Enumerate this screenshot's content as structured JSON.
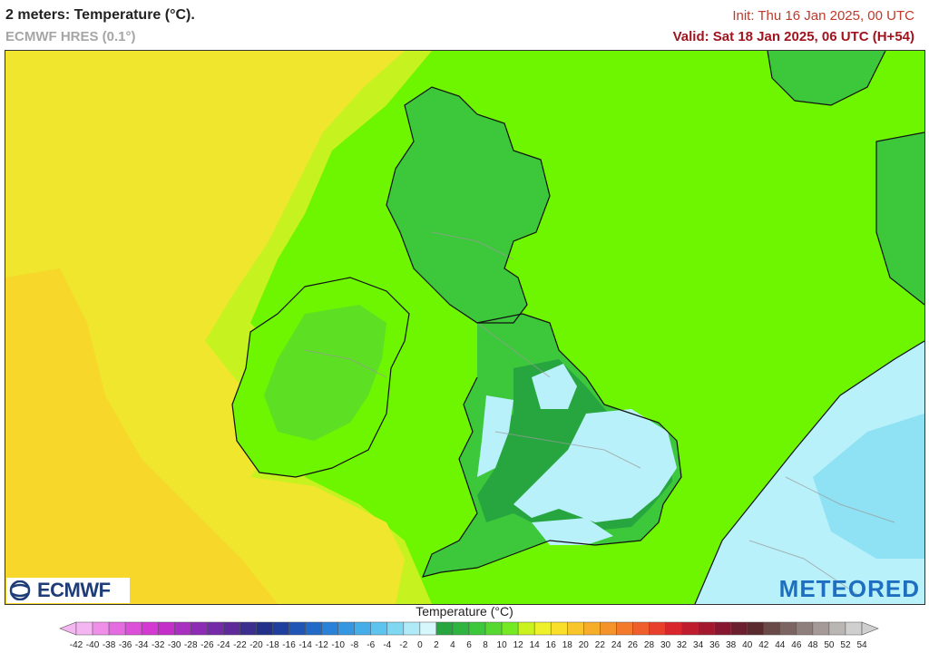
{
  "header": {
    "title": "2 meters: Temperature (°C).",
    "model": "ECMWF HRES (0.1°)",
    "init": "Init: Thu 16 Jan 2025, 00 UTC",
    "valid": "Valid: Sat 18 Jan 2025, 06 UTC (H+54)"
  },
  "logos": {
    "left": "ECMWF",
    "right": "METEORED"
  },
  "legend": {
    "title": "Temperature (°C)",
    "ticks": [
      "-42",
      "-40",
      "-38",
      "-36",
      "-34",
      "-32",
      "-30",
      "-28",
      "-26",
      "-24",
      "-22",
      "-20",
      "-18",
      "-16",
      "-14",
      "-12",
      "-10",
      "-8",
      "-6",
      "-4",
      "-2",
      "0",
      "2",
      "4",
      "6",
      "8",
      "10",
      "12",
      "14",
      "16",
      "18",
      "20",
      "22",
      "24",
      "26",
      "28",
      "30",
      "32",
      "34",
      "36",
      "38",
      "40",
      "42",
      "44",
      "46",
      "48",
      "50",
      "52",
      "54"
    ],
    "colors": [
      "#f4b6f0",
      "#ef8fe8",
      "#e56be0",
      "#dc4fd8",
      "#d43ad2",
      "#c32fc8",
      "#a92fc0",
      "#8d2bb5",
      "#752aa8",
      "#5e2a9a",
      "#3b2e8e",
      "#22308a",
      "#1f3f9e",
      "#2055b5",
      "#226ac8",
      "#2a82d8",
      "#3597e2",
      "#45aee9",
      "#5cc4ef",
      "#7fd7f2",
      "#aeeaf7",
      "#d6f7fb",
      "#27a640",
      "#2fb53f",
      "#3cc83a",
      "#55d930",
      "#75ea22",
      "#c9f21e",
      "#eef02a",
      "#f9df2a",
      "#f8c62a",
      "#f6ad2a",
      "#f4932a",
      "#f27a2a",
      "#ee5f2b",
      "#e8402b",
      "#d9262d",
      "#bf1d2d",
      "#a4182e",
      "#87172f",
      "#6c1f2f",
      "#5a2a2e",
      "#6a4a48",
      "#7c6462",
      "#8f7f7c",
      "#a59a97",
      "#bab6b4",
      "#cfcfcf"
    ]
  },
  "colors": {
    "sea_warm": "#f1e62e",
    "sea_warmer": "#f6d72a",
    "sea_mild": "#6ef500",
    "land_cool": "#3cc83a",
    "land_cold": "#27a640",
    "frost": "#b9f1fb",
    "frost_deep": "#8fe1f4"
  }
}
